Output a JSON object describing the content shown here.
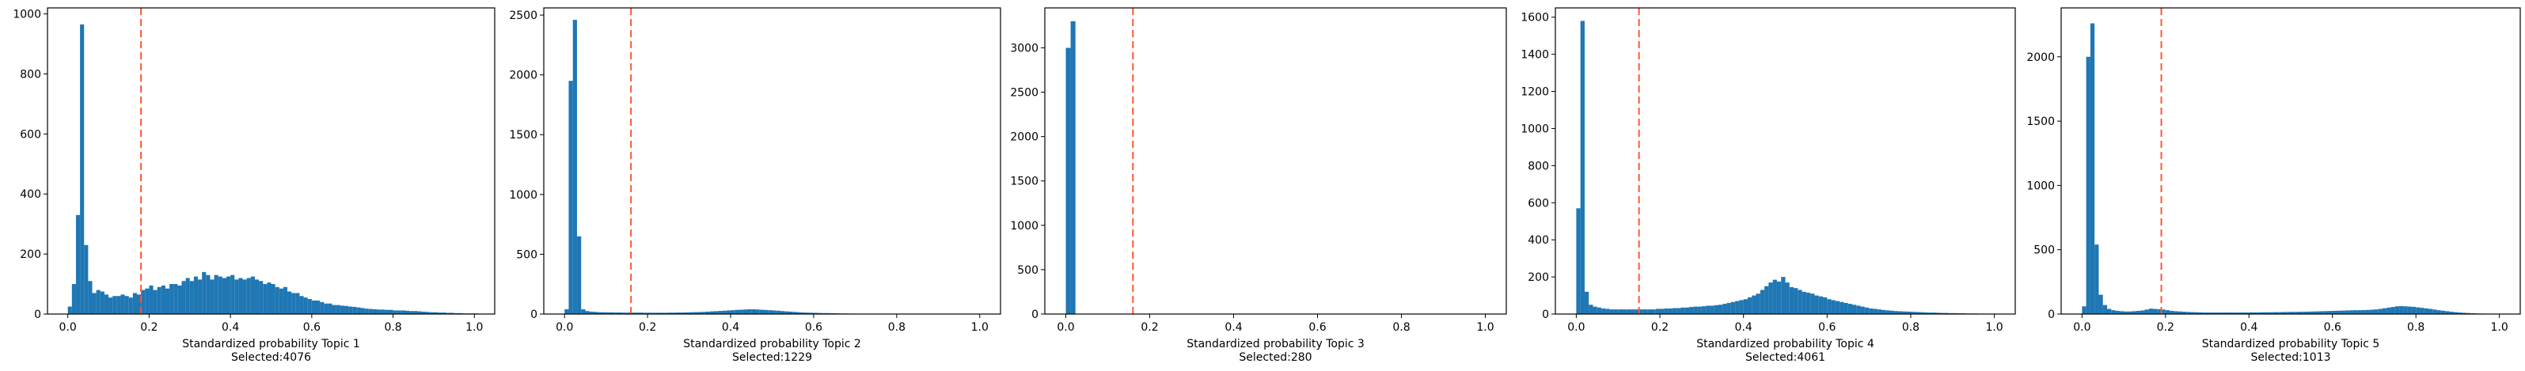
{
  "chart_data": [
    {
      "type": "bar",
      "subtype": "histogram",
      "color": "#1f77b4",
      "threshold_color": "#ff5733",
      "xlabel": "Standardized probability Topic 1",
      "caption": "Selected:4076",
      "xlim": [
        -0.05,
        1.05
      ],
      "ylim": [
        0,
        1020
      ],
      "xticks": [
        0.0,
        0.2,
        0.4,
        0.6,
        0.8,
        1.0
      ],
      "xtick_labels": [
        "0.0",
        "0.2",
        "0.4",
        "0.6",
        "0.8",
        "1.0"
      ],
      "yticks": [
        0,
        200,
        400,
        600,
        800,
        1000
      ],
      "ytick_labels": [
        "0",
        "200",
        "400",
        "600",
        "800",
        "1000"
      ],
      "threshold": 0.18,
      "bins": {
        "start": 0.0,
        "width": 0.01
      },
      "values": [
        25,
        100,
        330,
        965,
        230,
        110,
        70,
        80,
        75,
        65,
        55,
        60,
        60,
        65,
        60,
        55,
        70,
        65,
        80,
        85,
        95,
        80,
        90,
        95,
        85,
        100,
        100,
        95,
        110,
        120,
        110,
        125,
        115,
        140,
        130,
        115,
        130,
        125,
        120,
        125,
        130,
        115,
        120,
        115,
        120,
        125,
        115,
        110,
        100,
        105,
        100,
        90,
        85,
        90,
        75,
        70,
        70,
        60,
        55,
        50,
        45,
        45,
        40,
        35,
        35,
        30,
        30,
        28,
        27,
        25,
        24,
        22,
        20,
        18,
        17,
        16,
        15,
        15,
        14,
        14,
        12,
        12,
        12,
        11,
        10,
        10,
        9,
        8,
        7,
        6,
        6,
        5,
        5,
        4,
        4,
        3,
        3,
        2,
        2,
        2,
        2
      ]
    },
    {
      "type": "bar",
      "subtype": "histogram",
      "color": "#1f77b4",
      "threshold_color": "#ff5733",
      "xlabel": "Standardized probability Topic 2",
      "caption": "Selected:1229",
      "xlim": [
        -0.05,
        1.05
      ],
      "ylim": [
        0,
        2560
      ],
      "xticks": [
        0.0,
        0.2,
        0.4,
        0.6,
        0.8,
        1.0
      ],
      "xtick_labels": [
        "0.0",
        "0.2",
        "0.4",
        "0.6",
        "0.8",
        "1.0"
      ],
      "yticks": [
        0,
        500,
        1000,
        1500,
        2000,
        2500
      ],
      "ytick_labels": [
        "0",
        "500",
        "1000",
        "1500",
        "2000",
        "2500"
      ],
      "threshold": 0.16,
      "bins": {
        "start": 0.0,
        "width": 0.01
      },
      "values": [
        40,
        1950,
        2460,
        650,
        40,
        25,
        20,
        18,
        15,
        15,
        14,
        14,
        13,
        13,
        12,
        12,
        12,
        12,
        12,
        11,
        11,
        11,
        11,
        11,
        11,
        12,
        12,
        13,
        13,
        14,
        15,
        16,
        17,
        18,
        20,
        22,
        24,
        26,
        28,
        30,
        32,
        35,
        36,
        38,
        40,
        40,
        38,
        36,
        34,
        32,
        30,
        28,
        25,
        22,
        20,
        18,
        15,
        13,
        12,
        11,
        10,
        9,
        8,
        8,
        7,
        6,
        5,
        5,
        4,
        4,
        3,
        3,
        3,
        2,
        2,
        2,
        2,
        2,
        2,
        1,
        1,
        1,
        1,
        1,
        1,
        1,
        1,
        1,
        1,
        1,
        1,
        1,
        1,
        1,
        1,
        1,
        1,
        1,
        1,
        1,
        1
      ]
    },
    {
      "type": "bar",
      "subtype": "histogram",
      "color": "#1f77b4",
      "threshold_color": "#ff5733",
      "xlabel": "Standardized probability Topic 3",
      "caption": "Selected:280",
      "xlim": [
        -0.05,
        1.05
      ],
      "ylim": [
        0,
        3450
      ],
      "xticks": [
        0.0,
        0.2,
        0.4,
        0.6,
        0.8,
        1.0
      ],
      "xtick_labels": [
        "0.0",
        "0.2",
        "0.4",
        "0.6",
        "0.8",
        "1.0"
      ],
      "yticks": [
        0,
        500,
        1000,
        1500,
        2000,
        2500,
        3000
      ],
      "ytick_labels": [
        "0",
        "500",
        "1000",
        "1500",
        "2000",
        "2500",
        "3000"
      ],
      "threshold": 0.16,
      "bins": {
        "start": 0.0,
        "width": 0.0115
      },
      "values": [
        3000,
        3300,
        4,
        4,
        3,
        3,
        3,
        3,
        3,
        3,
        3,
        3,
        3,
        3,
        3,
        3,
        3,
        3,
        3,
        3,
        3,
        3,
        3,
        3,
        3,
        3,
        3,
        3,
        3,
        3,
        3,
        3,
        3,
        3,
        3,
        3,
        3,
        3,
        3,
        3,
        3,
        3,
        3,
        3,
        3,
        3,
        3,
        3,
        3,
        3,
        3,
        3,
        3,
        3,
        3,
        3,
        3,
        3,
        3,
        3,
        3,
        3,
        3,
        3,
        3,
        3,
        3,
        3,
        3,
        3,
        3,
        3,
        3,
        3,
        3,
        3,
        3,
        3,
        3,
        3,
        3,
        3,
        3,
        3,
        3,
        3,
        3
      ]
    },
    {
      "type": "bar",
      "subtype": "histogram",
      "color": "#1f77b4",
      "threshold_color": "#ff5733",
      "xlabel": "Standardized probability Topic 4",
      "caption": "Selected:4061",
      "xlim": [
        -0.05,
        1.05
      ],
      "ylim": [
        0,
        1650
      ],
      "xticks": [
        0.0,
        0.2,
        0.4,
        0.6,
        0.8,
        1.0
      ],
      "xtick_labels": [
        "0.0",
        "0.2",
        "0.4",
        "0.6",
        "0.8",
        "1.0"
      ],
      "yticks": [
        0,
        200,
        400,
        600,
        800,
        1000,
        1200,
        1400,
        1600
      ],
      "ytick_labels": [
        "0",
        "200",
        "400",
        "600",
        "800",
        "1000",
        "1200",
        "1400",
        "1600"
      ],
      "threshold": 0.15,
      "bins": {
        "start": 0.0,
        "width": 0.01
      },
      "values": [
        570,
        1580,
        120,
        50,
        40,
        35,
        30,
        28,
        25,
        25,
        25,
        25,
        25,
        25,
        25,
        25,
        25,
        25,
        25,
        28,
        28,
        30,
        30,
        32,
        32,
        35,
        35,
        38,
        40,
        40,
        42,
        45,
        45,
        48,
        50,
        55,
        60,
        65,
        70,
        75,
        80,
        90,
        100,
        110,
        130,
        150,
        170,
        185,
        175,
        200,
        170,
        145,
        140,
        130,
        120,
        115,
        110,
        100,
        95,
        90,
        80,
        75,
        70,
        65,
        60,
        55,
        50,
        45,
        40,
        35,
        30,
        28,
        25,
        22,
        20,
        18,
        16,
        15,
        14,
        13,
        12,
        11,
        10,
        9,
        8,
        8,
        7,
        6,
        6,
        5,
        5,
        4,
        4,
        3,
        3,
        3,
        2,
        2,
        2,
        2,
        2
      ]
    },
    {
      "type": "bar",
      "subtype": "histogram",
      "color": "#1f77b4",
      "threshold_color": "#ff5733",
      "xlabel": "Standardized probability Topic 5",
      "caption": "Selected:1013",
      "xlim": [
        -0.05,
        1.05
      ],
      "ylim": [
        0,
        2380
      ],
      "xticks": [
        0.0,
        0.2,
        0.4,
        0.6,
        0.8,
        1.0
      ],
      "xtick_labels": [
        "0.0",
        "0.2",
        "0.4",
        "0.6",
        "0.8",
        "1.0"
      ],
      "yticks": [
        0,
        500,
        1000,
        1500,
        2000
      ],
      "ytick_labels": [
        "0",
        "500",
        "1000",
        "1500",
        "2000"
      ],
      "threshold": 0.19,
      "bins": {
        "start": 0.0,
        "width": 0.01
      },
      "values": [
        60,
        2000,
        2260,
        540,
        150,
        70,
        40,
        30,
        25,
        22,
        20,
        20,
        22,
        25,
        28,
        35,
        42,
        40,
        38,
        35,
        30,
        25,
        22,
        20,
        18,
        16,
        15,
        14,
        13,
        12,
        12,
        12,
        12,
        12,
        12,
        12,
        12,
        12,
        12,
        12,
        13,
        13,
        13,
        14,
        14,
        14,
        15,
        15,
        16,
        16,
        17,
        17,
        18,
        18,
        19,
        20,
        21,
        22,
        23,
        24,
        25,
        26,
        27,
        28,
        29,
        30,
        30,
        31,
        32,
        34,
        36,
        40,
        45,
        50,
        55,
        60,
        62,
        60,
        58,
        56,
        52,
        48,
        44,
        40,
        35,
        30,
        26,
        22,
        18,
        15,
        12,
        10,
        8,
        6,
        5,
        4,
        3,
        2,
        2,
        1,
        1
      ]
    }
  ]
}
